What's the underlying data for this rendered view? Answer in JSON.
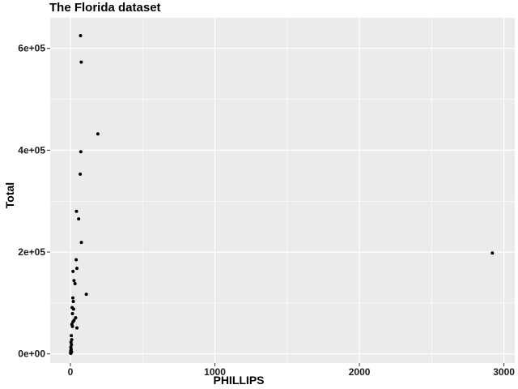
{
  "chart_data": {
    "type": "scatter",
    "title": "The Florida dataset",
    "xlabel": "PHILLIPS",
    "ylabel": "Total",
    "xlim": [
      -140,
      3075
    ],
    "ylim": [
      -18000,
      660000
    ],
    "x_ticks": [
      0,
      1000,
      2000,
      3000
    ],
    "x_tick_labels": [
      "0",
      "1000",
      "2000",
      "3000"
    ],
    "y_ticks": [
      0,
      200000,
      400000,
      600000
    ],
    "y_tick_labels": [
      "0e+00",
      "2e+05",
      "4e+05",
      "6e+05"
    ],
    "grid": true,
    "legend": "none",
    "colors": {
      "panel": "#ebebeb",
      "grid": "#ffffff",
      "point": "#000000"
    },
    "points": [
      {
        "x": 70,
        "y": 625000
      },
      {
        "x": 75,
        "y": 573000
      },
      {
        "x": 190,
        "y": 432000
      },
      {
        "x": 72,
        "y": 397000
      },
      {
        "x": 68,
        "y": 353000
      },
      {
        "x": 42,
        "y": 280000
      },
      {
        "x": 57,
        "y": 265000
      },
      {
        "x": 76,
        "y": 219000
      },
      {
        "x": 2920,
        "y": 198000
      },
      {
        "x": 40,
        "y": 185000
      },
      {
        "x": 45,
        "y": 168000
      },
      {
        "x": 18,
        "y": 162000
      },
      {
        "x": 25,
        "y": 144000
      },
      {
        "x": 32,
        "y": 138000
      },
      {
        "x": 110,
        "y": 117000
      },
      {
        "x": 17,
        "y": 110000
      },
      {
        "x": 20,
        "y": 103000
      },
      {
        "x": 12,
        "y": 91000
      },
      {
        "x": 22,
        "y": 88000
      },
      {
        "x": 14,
        "y": 79000
      },
      {
        "x": 36,
        "y": 71000
      },
      {
        "x": 25,
        "y": 66000
      },
      {
        "x": 18,
        "y": 63000
      },
      {
        "x": 10,
        "y": 58000
      },
      {
        "x": 14,
        "y": 54000
      },
      {
        "x": 45,
        "y": 51000
      },
      {
        "x": 6,
        "y": 36000
      },
      {
        "x": 9,
        "y": 28000
      },
      {
        "x": 4,
        "y": 23000
      },
      {
        "x": 7,
        "y": 18000
      },
      {
        "x": 3,
        "y": 13000
      },
      {
        "x": 5,
        "y": 9000
      },
      {
        "x": 2,
        "y": 6000
      },
      {
        "x": 8,
        "y": 4000
      },
      {
        "x": 1,
        "y": 2000
      },
      {
        "x": 3,
        "y": 1000
      }
    ]
  }
}
